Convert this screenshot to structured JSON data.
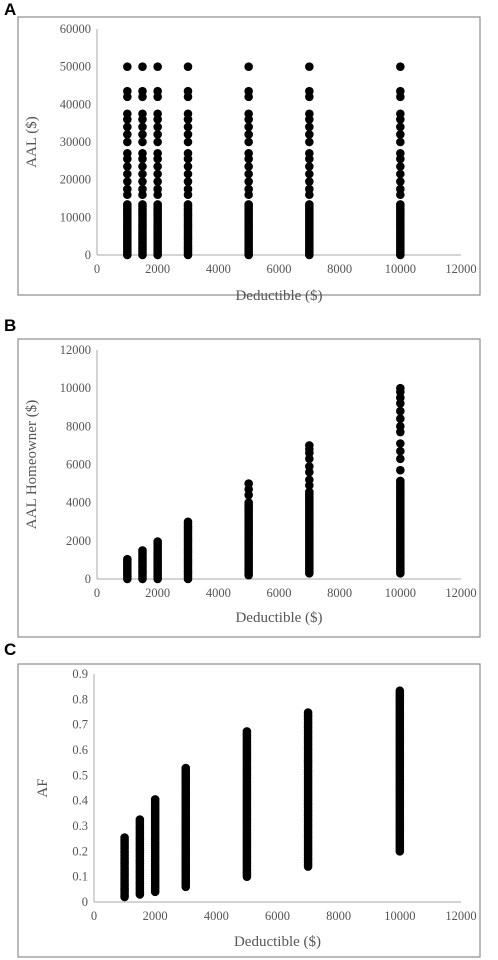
{
  "panels": [
    {
      "letter": "A"
    },
    {
      "letter": "B"
    },
    {
      "letter": "C"
    }
  ],
  "chart_data": [
    {
      "type": "scatter",
      "panel": "A",
      "xlabel": "Deductible ($)",
      "ylabel": "AAL ($)",
      "xlim": [
        0,
        12000
      ],
      "ylim": [
        0,
        60000
      ],
      "xticks": [
        0,
        2000,
        4000,
        6000,
        8000,
        10000,
        12000
      ],
      "yticks": [
        0,
        10000,
        20000,
        30000,
        40000,
        50000,
        60000
      ],
      "grid": false,
      "series": [
        {
          "x": 1000,
          "y_min": 0,
          "y_max": 50000,
          "dense_max": 14000,
          "sparse_y": [
            16000,
            17500,
            19500,
            21500,
            23500,
            25500,
            27000,
            30000,
            32000,
            34000,
            36000,
            37500,
            42000,
            43500,
            50000
          ]
        },
        {
          "x": 1500,
          "y_min": 0,
          "y_max": 50000,
          "dense_max": 14000,
          "sparse_y": [
            16000,
            17500,
            19500,
            21500,
            23500,
            25500,
            27000,
            30000,
            32000,
            34000,
            36000,
            37500,
            42000,
            43500,
            50000
          ]
        },
        {
          "x": 2000,
          "y_min": 0,
          "y_max": 50000,
          "dense_max": 14000,
          "sparse_y": [
            16000,
            17500,
            19500,
            21500,
            23500,
            25500,
            27000,
            30000,
            32000,
            34000,
            36000,
            37500,
            42000,
            43500,
            50000
          ]
        },
        {
          "x": 3000,
          "y_min": 0,
          "y_max": 50000,
          "dense_max": 14000,
          "sparse_y": [
            16000,
            17500,
            19500,
            21500,
            23500,
            25500,
            27000,
            30000,
            32000,
            34000,
            36000,
            37500,
            42000,
            43500,
            50000
          ]
        },
        {
          "x": 5000,
          "y_min": 0,
          "y_max": 50000,
          "dense_max": 14000,
          "sparse_y": [
            16000,
            17500,
            19500,
            21500,
            23500,
            25500,
            27000,
            30000,
            32000,
            34000,
            36000,
            37500,
            42000,
            43500,
            50000
          ]
        },
        {
          "x": 7000,
          "y_min": 0,
          "y_max": 50000,
          "dense_max": 14000,
          "sparse_y": [
            16000,
            17500,
            19500,
            21500,
            23500,
            25500,
            27000,
            30000,
            32000,
            34000,
            36000,
            37500,
            42000,
            43500,
            50000
          ]
        },
        {
          "x": 10000,
          "y_min": 0,
          "y_max": 50000,
          "dense_max": 14000,
          "sparse_y": [
            16000,
            17500,
            19500,
            21500,
            23500,
            25500,
            27000,
            30000,
            32000,
            34000,
            36000,
            37500,
            42000,
            43500,
            50000
          ]
        }
      ]
    },
    {
      "type": "scatter",
      "panel": "B",
      "xlabel": "Deductible ($)",
      "ylabel": "AAL Homeowner ($)",
      "xlim": [
        0,
        12000
      ],
      "ylim": [
        0,
        12000
      ],
      "xticks": [
        0,
        2000,
        4000,
        6000,
        8000,
        10000,
        12000
      ],
      "yticks": [
        0,
        2000,
        4000,
        6000,
        8000,
        10000,
        12000
      ],
      "grid": false,
      "series": [
        {
          "x": 1000,
          "y_min": 0,
          "y_max": 1050,
          "dense_max": 1050,
          "sparse_y": []
        },
        {
          "x": 1500,
          "y_min": 0,
          "y_max": 1550,
          "dense_max": 1550,
          "sparse_y": []
        },
        {
          "x": 2000,
          "y_min": 0,
          "y_max": 2050,
          "dense_max": 2050,
          "sparse_y": []
        },
        {
          "x": 3000,
          "y_min": 0,
          "y_max": 3050,
          "dense_max": 3050,
          "sparse_y": []
        },
        {
          "x": 5000,
          "y_min": 200,
          "y_max": 5000,
          "dense_max": 4100,
          "sparse_y": [
            4400,
            4700,
            5000
          ]
        },
        {
          "x": 7000,
          "y_min": 300,
          "y_max": 7000,
          "dense_max": 4600,
          "sparse_y": [
            4900,
            5200,
            5600,
            5900,
            6300,
            6600,
            6800,
            7000
          ]
        },
        {
          "x": 10000,
          "y_min": 300,
          "y_max": 10000,
          "dense_max": 5200,
          "sparse_y": [
            5700,
            6300,
            6700,
            7100,
            7700,
            8000,
            8400,
            8800,
            9200,
            9500,
            9800,
            10000
          ]
        }
      ]
    },
    {
      "type": "scatter",
      "panel": "C",
      "xlabel": "Deductible ($)",
      "ylabel": "AF",
      "xlim": [
        0,
        12000
      ],
      "ylim": [
        0,
        0.9
      ],
      "xticks": [
        0,
        2000,
        4000,
        6000,
        8000,
        10000,
        12000
      ],
      "yticks": [
        0,
        0.1,
        0.2,
        0.3,
        0.4,
        0.5,
        0.6,
        0.7,
        0.8,
        0.9
      ],
      "grid": false,
      "series": [
        {
          "x": 1000,
          "y_min": 0.02,
          "y_max": 0.26,
          "dense_max": 0.26,
          "sparse_y": []
        },
        {
          "x": 1500,
          "y_min": 0.03,
          "y_max": 0.33,
          "dense_max": 0.33,
          "sparse_y": []
        },
        {
          "x": 2000,
          "y_min": 0.04,
          "y_max": 0.41,
          "dense_max": 0.41,
          "sparse_y": []
        },
        {
          "x": 3000,
          "y_min": 0.06,
          "y_max": 0.53,
          "dense_max": 0.53,
          "sparse_y": []
        },
        {
          "x": 5000,
          "y_min": 0.1,
          "y_max": 0.68,
          "dense_max": 0.68,
          "sparse_y": []
        },
        {
          "x": 7000,
          "y_min": 0.14,
          "y_max": 0.75,
          "dense_max": 0.75,
          "sparse_y": []
        },
        {
          "x": 10000,
          "y_min": 0.2,
          "y_max": 0.84,
          "dense_max": 0.84,
          "sparse_y": []
        }
      ]
    }
  ]
}
